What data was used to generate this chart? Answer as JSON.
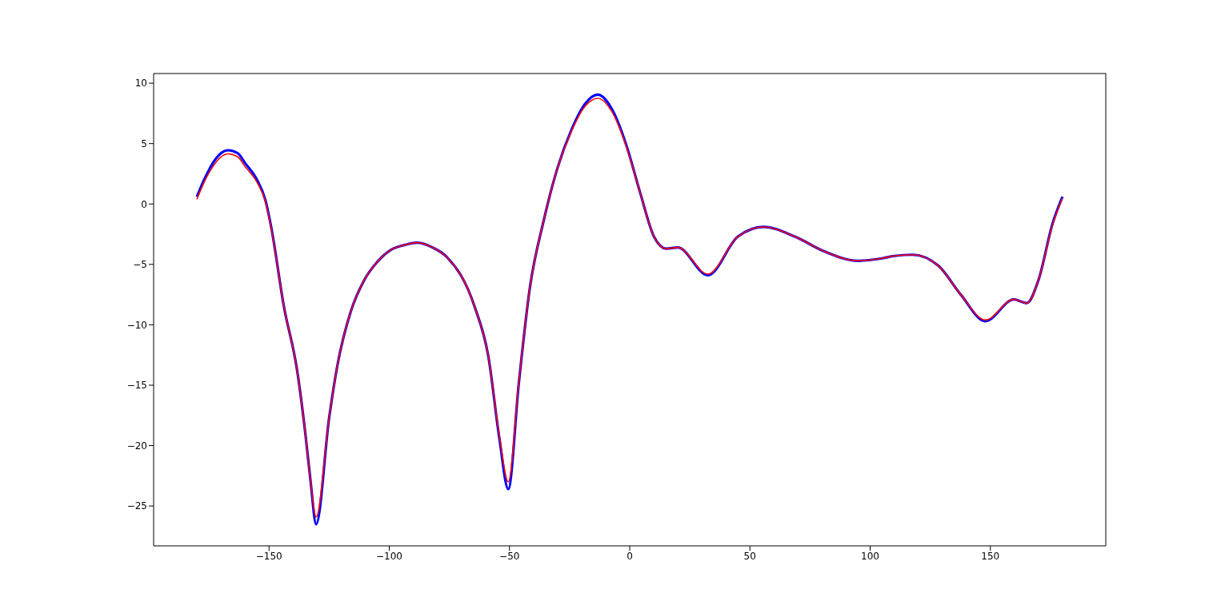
{
  "chart_data": {
    "type": "line",
    "x": [
      -180,
      -177,
      -173,
      -170,
      -167,
      -163,
      -160,
      -155,
      -151.5,
      -149.3,
      -143.8,
      -138.3,
      -134.9,
      -132.7,
      -130.4,
      -125,
      -121.6,
      -116,
      -110.4,
      -105,
      -99.3,
      -93.8,
      -88.3,
      -82,
      -76,
      -64.5,
      -58.8,
      -54.2,
      -50.5,
      -46.1,
      -41.5,
      -35.8,
      -30,
      -24.3,
      -18.5,
      -13.3,
      -7,
      -1.3,
      4.4,
      10.2,
      15.2,
      20,
      32.5,
      45,
      55.7,
      68.7,
      80.7,
      95,
      105,
      110,
      117.6,
      128.3,
      137.7,
      147.9,
      159.8,
      165.2,
      170,
      175.9,
      180
    ],
    "series": [
      {
        "color": "#0000ff",
        "values": [
          0.6,
          2.0,
          3.5,
          4.2,
          4.45,
          4.2,
          3.4,
          2.0,
          0.3,
          -1.7,
          -8.5,
          -13.8,
          -19,
          -23,
          -26.5,
          -17.7,
          -13.4,
          -8.9,
          -6.3,
          -4.8,
          -3.8,
          -3.4,
          -3.2,
          -3.6,
          -4.4,
          -8.5,
          -12.6,
          -19.4,
          -23.6,
          -14.8,
          -6.9,
          -1.4,
          3.0,
          6.1,
          8.3,
          9.05,
          7.7,
          4.8,
          0.9,
          -2.75,
          -3.7,
          -3.6,
          -5.9,
          -2.7,
          -1.9,
          -2.7,
          -3.9,
          -4.7,
          -4.5,
          -4.3,
          -4.2,
          -5.1,
          -7.5,
          -9.7,
          -7.9,
          -8.2,
          -6.3,
          -1.6,
          0.6
        ]
      },
      {
        "color": "#ff0000",
        "values": [
          0.4,
          1.8,
          3.2,
          3.9,
          4.15,
          3.9,
          3.1,
          1.8,
          0.2,
          -1.8,
          -8.5,
          -13.8,
          -19,
          -23,
          -25.9,
          -17.7,
          -13.4,
          -8.9,
          -6.3,
          -4.8,
          -3.8,
          -3.4,
          -3.2,
          -3.6,
          -4.4,
          -8.5,
          -12.6,
          -19.2,
          -23.0,
          -14.7,
          -6.9,
          -1.4,
          3.0,
          6.0,
          8.1,
          8.75,
          7.5,
          4.7,
          0.9,
          -2.75,
          -3.7,
          -3.6,
          -5.8,
          -2.7,
          -1.9,
          -2.7,
          -3.9,
          -4.7,
          -4.5,
          -4.3,
          -4.2,
          -5.1,
          -7.5,
          -9.6,
          -7.9,
          -8.2,
          -6.3,
          -1.7,
          0.5
        ]
      }
    ],
    "xlim": [
      -198,
      198
    ],
    "xticks": [
      -150,
      -100,
      -50,
      0,
      50,
      100,
      150
    ],
    "ylim": [
      -28.3,
      10.8
    ],
    "yticks": [
      -25,
      -20,
      -15,
      -10,
      -5,
      0,
      5,
      10
    ]
  }
}
